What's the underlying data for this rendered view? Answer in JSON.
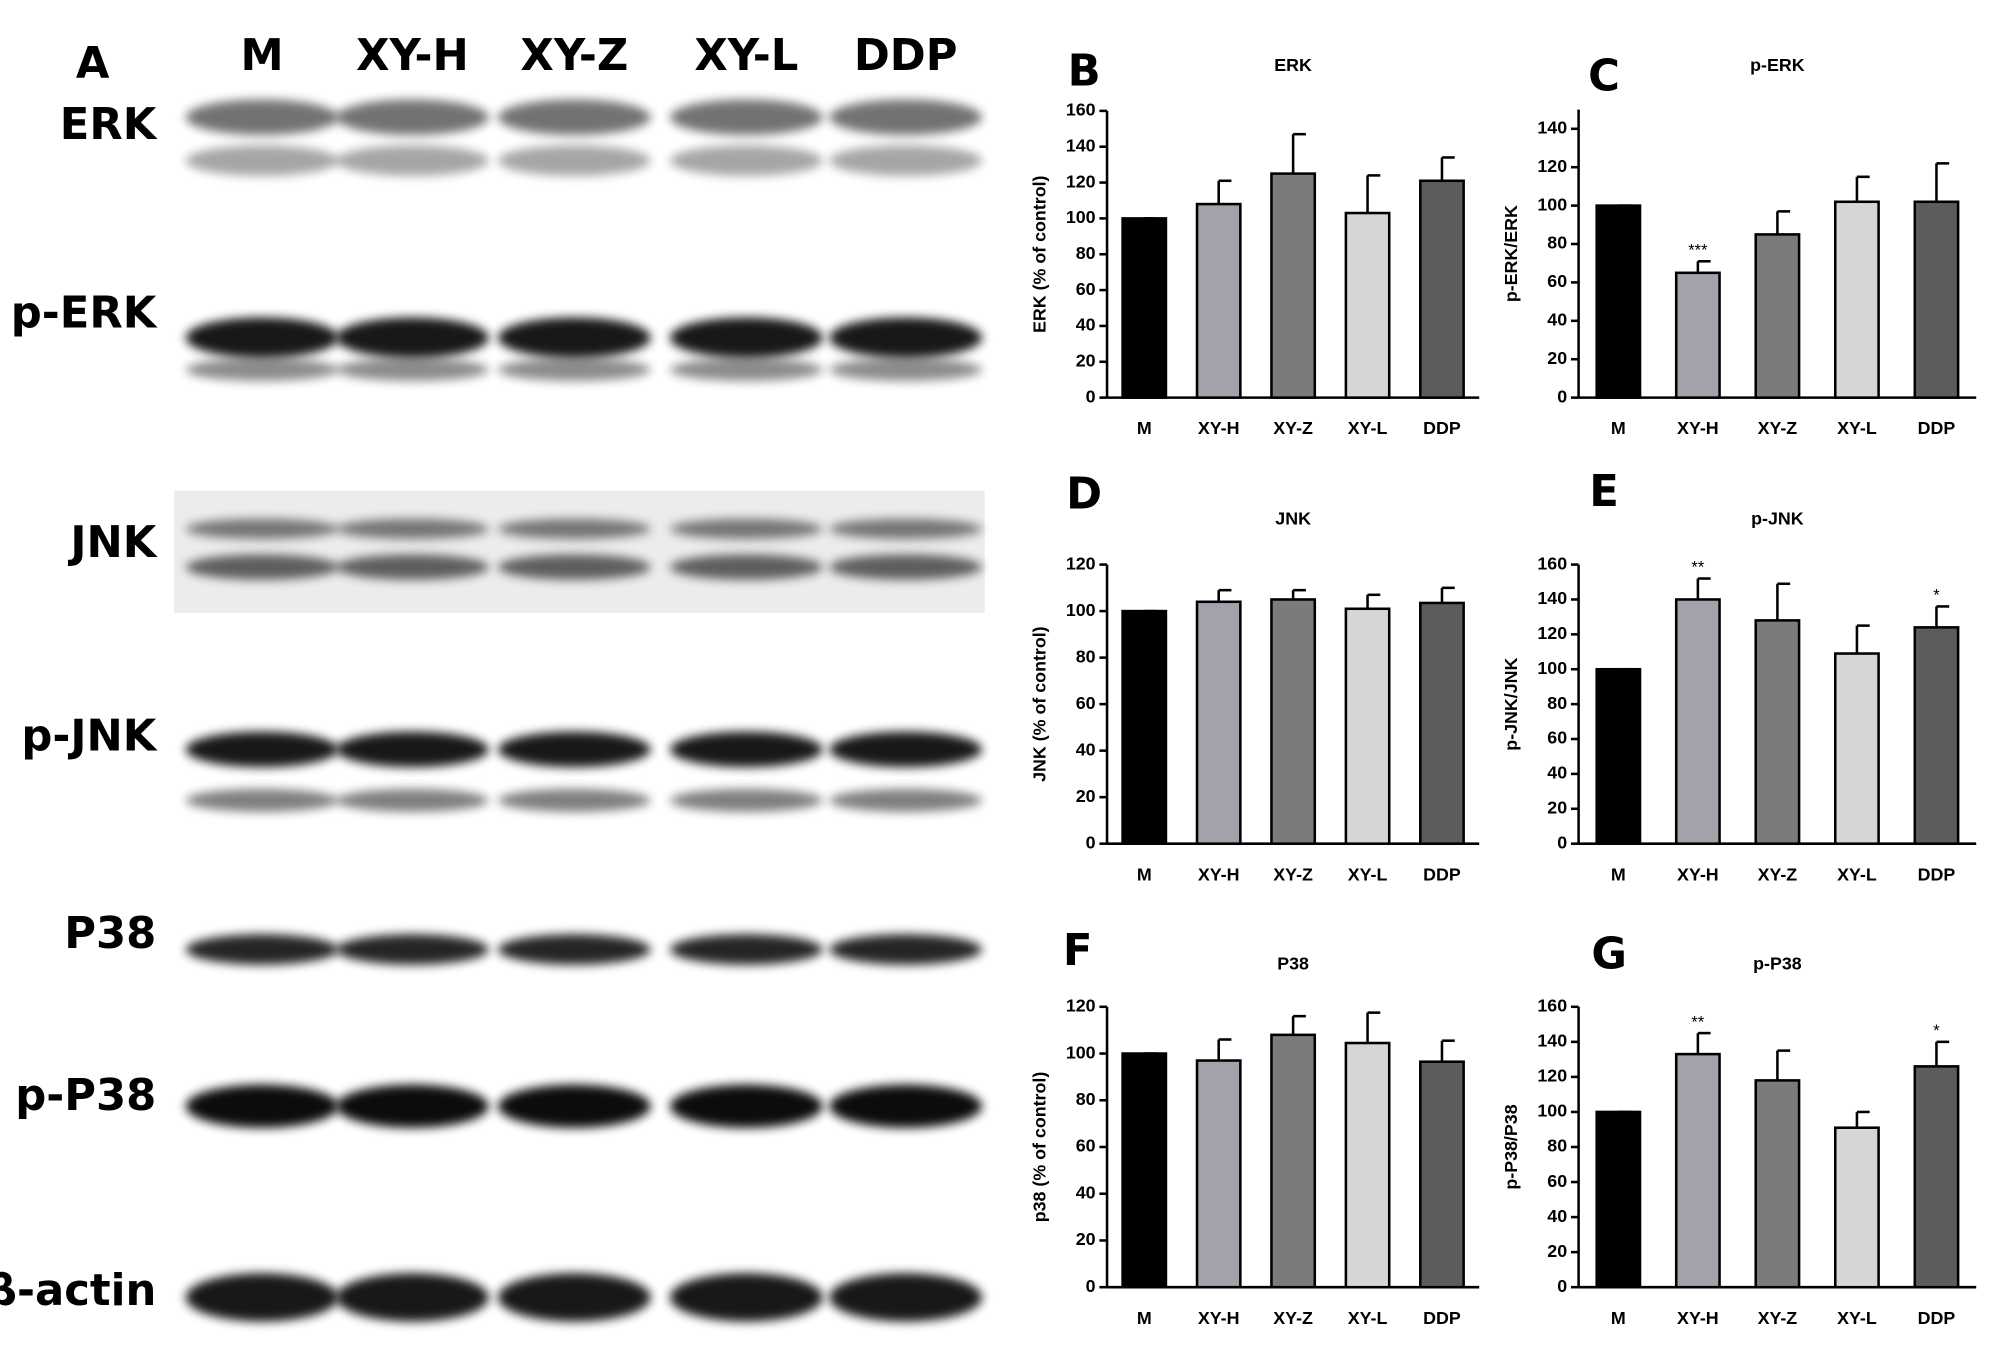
{
  "blot": {
    "label": "A",
    "lanes": [
      "M",
      "XY-H",
      "XY-Z",
      "XY-L",
      "DDP"
    ],
    "proteins": [
      "ERK",
      "p-ERK",
      "JNK",
      "p-JNK",
      "P38",
      "p-P38",
      "β-actin"
    ]
  },
  "chart_data": [
    {
      "type": "bar",
      "panel": "B",
      "title": "ERK",
      "y_label": "ERK (% of control)",
      "categories": [
        "M",
        "XY-H",
        "XY-Z",
        "XY-L",
        "DDP"
      ],
      "values": [
        100,
        108,
        125,
        103,
        121
      ],
      "errors": [
        0,
        13,
        22,
        21,
        13
      ],
      "colors": [
        "#000000",
        "#a2a2aa",
        "#7b7b7b",
        "#d6d6d6",
        "#5c5c5c"
      ],
      "significance": [
        null,
        null,
        null,
        null,
        null
      ],
      "ylim": [
        0,
        160
      ],
      "yticks": [
        0,
        20,
        40,
        60,
        80,
        100,
        120,
        140,
        160
      ]
    },
    {
      "type": "bar",
      "panel": "C",
      "title": "p-ERK",
      "y_label": "p-ERK/ERK",
      "categories": [
        "M",
        "XY-H",
        "XY-Z",
        "XY-L",
        "DDP"
      ],
      "values": [
        100,
        65,
        85,
        102,
        102
      ],
      "errors": [
        0,
        6,
        12,
        13,
        20
      ],
      "colors": [
        "#000000",
        "#a2a2aa",
        "#7b7b7b",
        "#d6d6d6",
        "#5c5c5c"
      ],
      "significance": [
        null,
        "***",
        null,
        null,
        null
      ],
      "ylim": [
        0,
        150
      ],
      "yticks": [
        0,
        20,
        40,
        60,
        80,
        100,
        120,
        140
      ]
    },
    {
      "type": "bar",
      "panel": "D",
      "title": "JNK",
      "y_label": "JNK (% of control)",
      "categories": [
        "M",
        "XY-H",
        "XY-Z",
        "XY-L",
        "DDP"
      ],
      "values": [
        100,
        104,
        105,
        101,
        103.5
      ],
      "errors": [
        0,
        5,
        4,
        6,
        6.5
      ],
      "colors": [
        "#000000",
        "#a2a2aa",
        "#7b7b7b",
        "#d6d6d6",
        "#5c5c5c"
      ],
      "significance": [
        null,
        null,
        null,
        null,
        null
      ],
      "ylim": [
        0,
        120
      ],
      "yticks": [
        0,
        20,
        40,
        60,
        80,
        100,
        120
      ]
    },
    {
      "type": "bar",
      "panel": "E",
      "title": "p-JNK",
      "y_label": "p-JNK/JNK",
      "categories": [
        "M",
        "XY-H",
        "XY-Z",
        "XY-L",
        "DDP"
      ],
      "values": [
        100,
        140,
        128,
        109,
        124
      ],
      "errors": [
        0,
        12,
        21,
        16,
        12
      ],
      "colors": [
        "#000000",
        "#a2a2aa",
        "#7b7b7b",
        "#d6d6d6",
        "#5c5c5c"
      ],
      "significance": [
        null,
        "**",
        null,
        null,
        "*"
      ],
      "ylim": [
        0,
        160
      ],
      "yticks": [
        0,
        20,
        40,
        60,
        80,
        100,
        120,
        140,
        160
      ]
    },
    {
      "type": "bar",
      "panel": "F",
      "title": "P38",
      "y_label": "p38 (% of control)",
      "categories": [
        "M",
        "XY-H",
        "XY-Z",
        "XY-L",
        "DDP"
      ],
      "values": [
        100,
        97,
        108,
        104.5,
        96.5
      ],
      "errors": [
        0,
        9,
        8,
        13,
        9
      ],
      "colors": [
        "#000000",
        "#a2a2aa",
        "#7b7b7b",
        "#d6d6d6",
        "#5c5c5c"
      ],
      "significance": [
        null,
        null,
        null,
        null,
        null
      ],
      "ylim": [
        0,
        120
      ],
      "yticks": [
        0,
        20,
        40,
        60,
        80,
        100,
        120
      ]
    },
    {
      "type": "bar",
      "panel": "G",
      "title": "p-P38",
      "y_label": "p-P38/P38",
      "categories": [
        "M",
        "XY-H",
        "XY-Z",
        "XY-L",
        "DDP"
      ],
      "values": [
        100,
        133,
        118,
        91,
        126
      ],
      "errors": [
        0,
        12,
        17,
        9,
        14
      ],
      "colors": [
        "#000000",
        "#a2a2aa",
        "#7b7b7b",
        "#d6d6d6",
        "#5c5c5c"
      ],
      "significance": [
        null,
        "**",
        null,
        null,
        "*"
      ],
      "ylim": [
        0,
        160
      ],
      "yticks": [
        0,
        20,
        40,
        60,
        80,
        100,
        120,
        140,
        160
      ]
    }
  ]
}
